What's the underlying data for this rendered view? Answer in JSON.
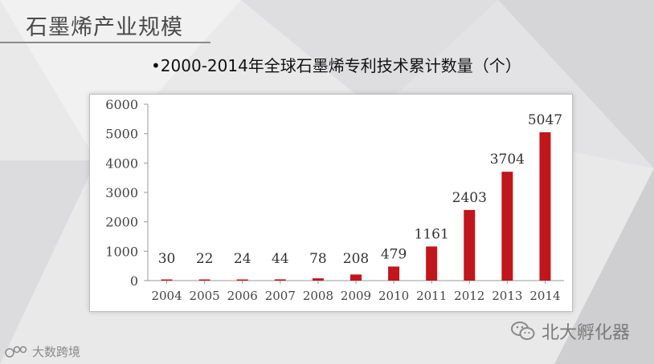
{
  "header": {
    "title": "石墨烯产业规模"
  },
  "subtitle": "•2000-2014年全球石墨烯专利技术累计数量（个）",
  "watermarks": {
    "right": "北大孵化器",
    "left": "大数跨境"
  },
  "colors": {
    "bar": "#c0161c",
    "axis": "#9a9a9a",
    "background": "#e9e9ea"
  },
  "chart_data": {
    "type": "bar",
    "categories": [
      "2004",
      "2005",
      "2006",
      "2007",
      "2008",
      "2009",
      "2010",
      "2011",
      "2012",
      "2013",
      "2014"
    ],
    "values": [
      30,
      22,
      24,
      44,
      78,
      208,
      479,
      1161,
      2403,
      3704,
      5047
    ],
    "yticks": [
      0,
      1000,
      2000,
      3000,
      4000,
      5000,
      6000
    ],
    "ylim": [
      0,
      6000
    ],
    "grid": false,
    "legend": "none"
  }
}
